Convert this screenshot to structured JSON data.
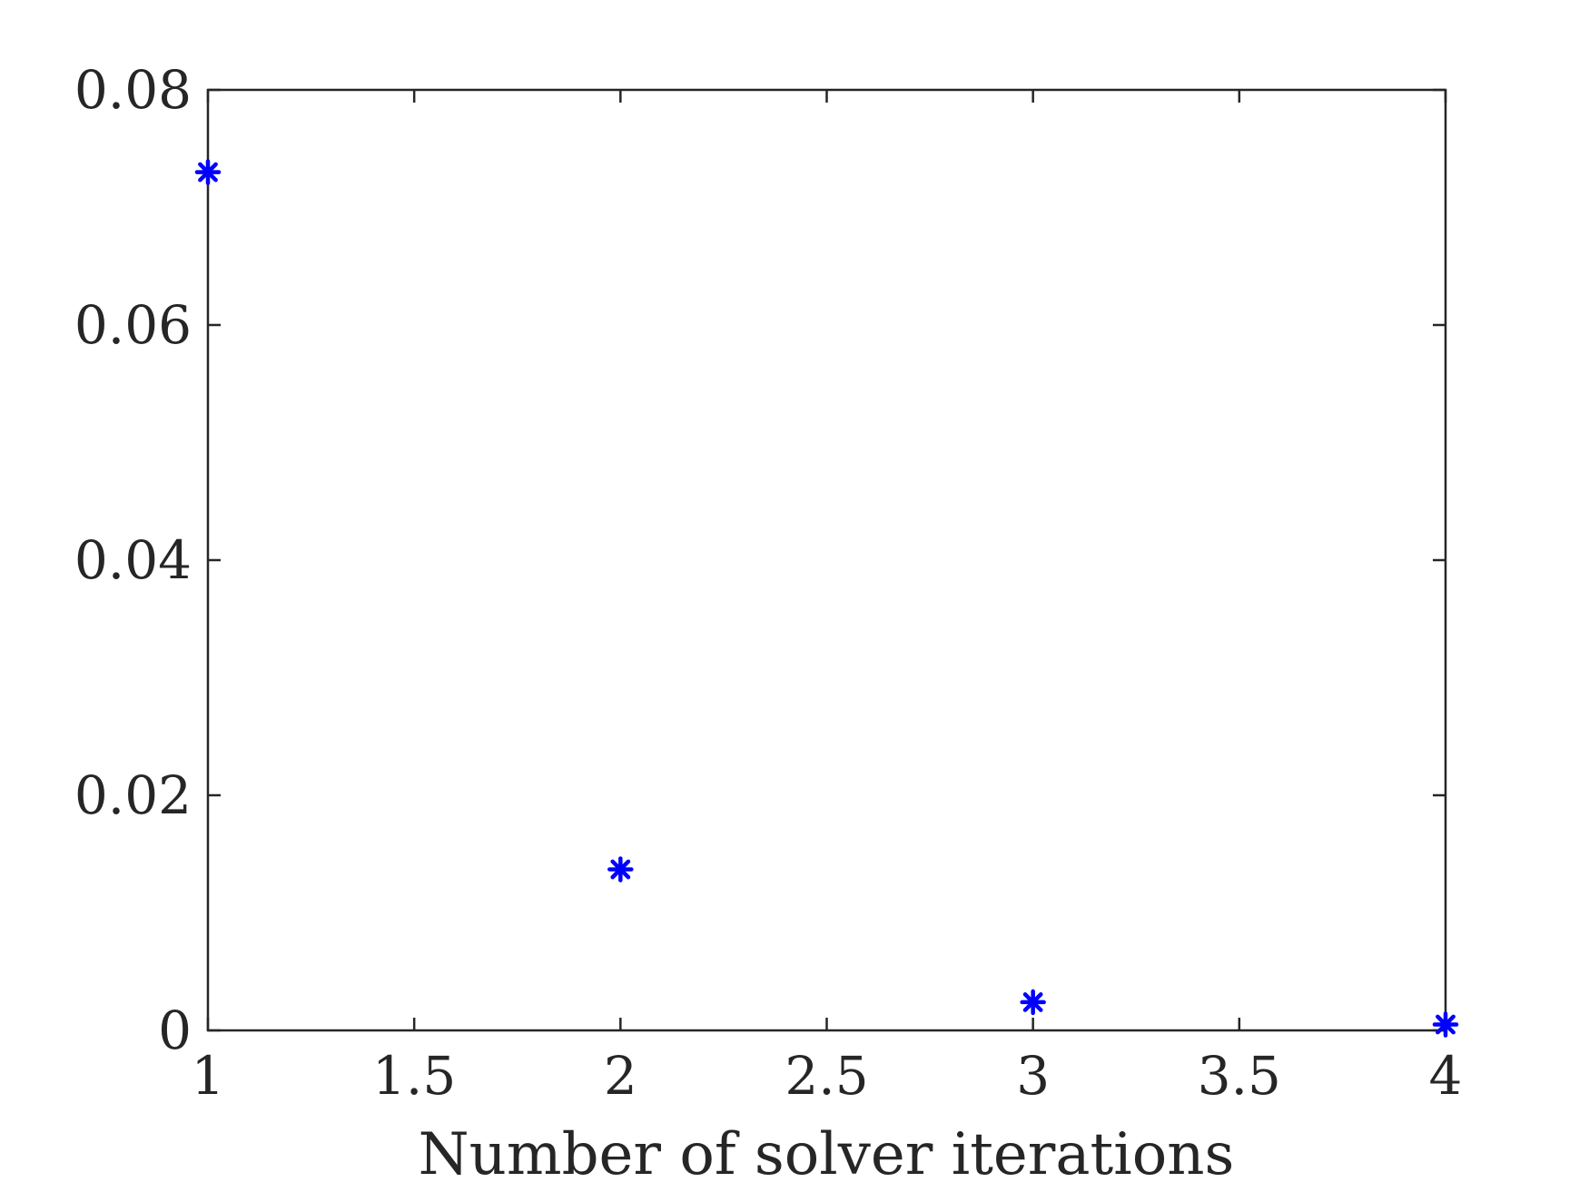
{
  "chart_data": {
    "type": "scatter",
    "title": "",
    "xlabel": "Number of solver iterations",
    "ylabel": "",
    "xlim": [
      1,
      4
    ],
    "ylim": [
      0,
      0.08
    ],
    "xticks": [
      1,
      1.5,
      2,
      2.5,
      3,
      3.5,
      4
    ],
    "xtick_labels": [
      "1",
      "1.5",
      "2",
      "2.5",
      "3",
      "3.5",
      "4"
    ],
    "yticks": [
      0,
      0.02,
      0.04,
      0.06,
      0.08
    ],
    "ytick_labels": [
      "0",
      "0.02",
      "0.04",
      "0.06",
      "0.08"
    ],
    "grid": false,
    "legend": "none",
    "marker": "asterisk",
    "color": "#0000ff",
    "series": [
      {
        "x": [
          1,
          2,
          3,
          4
        ],
        "y": [
          0.073,
          0.0137,
          0.0024,
          0.0005
        ]
      }
    ]
  }
}
